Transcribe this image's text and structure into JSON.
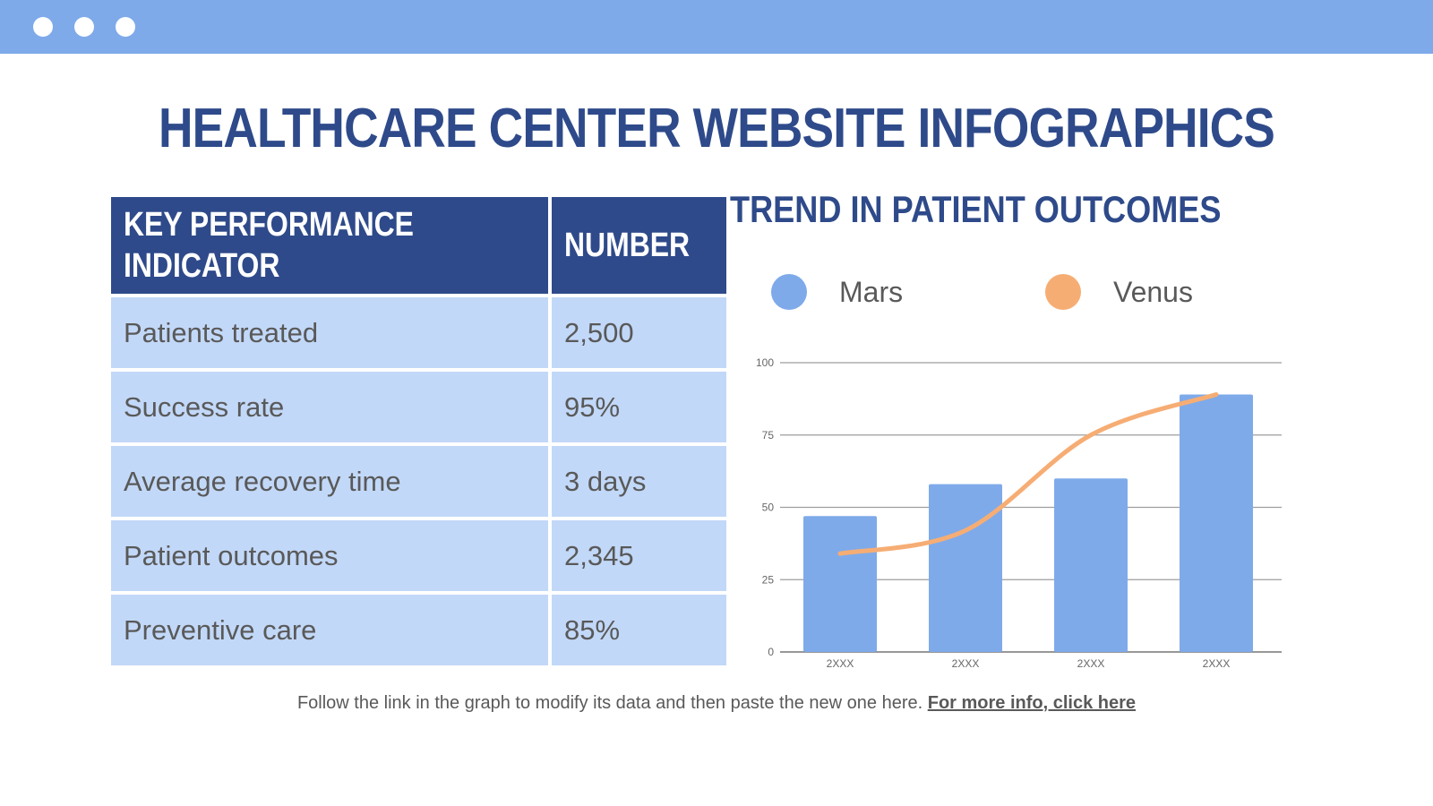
{
  "window": {
    "dots": [
      "window-dot-1",
      "window-dot-2",
      "window-dot-3"
    ],
    "topbar_color": "#7eaaea"
  },
  "page": {
    "title": "HEALTHCARE CENTER WEBSITE INFOGRAPHICS"
  },
  "table": {
    "headers": [
      "KEY PERFORMANCE INDICATOR",
      "NUMBER"
    ],
    "rows": [
      {
        "label": "Patients treated",
        "value": "2,500"
      },
      {
        "label": "Success rate",
        "value": "95%"
      },
      {
        "label": "Average recovery time",
        "value": "3 days"
      },
      {
        "label": "Patient outcomes",
        "value": "2,345"
      },
      {
        "label": "Preventive care",
        "value": "85%"
      }
    ],
    "header_color": "#2e4a8a",
    "row_color": "#c2d8f8"
  },
  "chart": {
    "title": "TREND IN PATIENT OUTCOMES",
    "legend": [
      {
        "label": "Mars",
        "color": "#7eaaea"
      },
      {
        "label": "Venus",
        "color": "#f6ad74"
      }
    ]
  },
  "chart_data": {
    "type": "bar",
    "title": "TREND IN PATIENT OUTCOMES",
    "categories": [
      "2XXX",
      "2XXX",
      "2XXX",
      "2XXX"
    ],
    "series": [
      {
        "name": "Mars",
        "type": "bar",
        "color": "#7eaaea",
        "values": [
          47,
          58,
          60,
          89
        ]
      },
      {
        "name": "Venus",
        "type": "line",
        "color": "#f6ad74",
        "values": [
          34,
          42,
          75,
          89
        ]
      }
    ],
    "xlabel": "",
    "ylabel": "",
    "ylim": [
      0,
      100
    ],
    "yticks": [
      0,
      25,
      50,
      75,
      100
    ],
    "grid": true,
    "legend_position": "top"
  },
  "footer": {
    "text": "Follow the link in the graph to modify its data and then paste the new one here. ",
    "link_label": "For more info, click here"
  }
}
